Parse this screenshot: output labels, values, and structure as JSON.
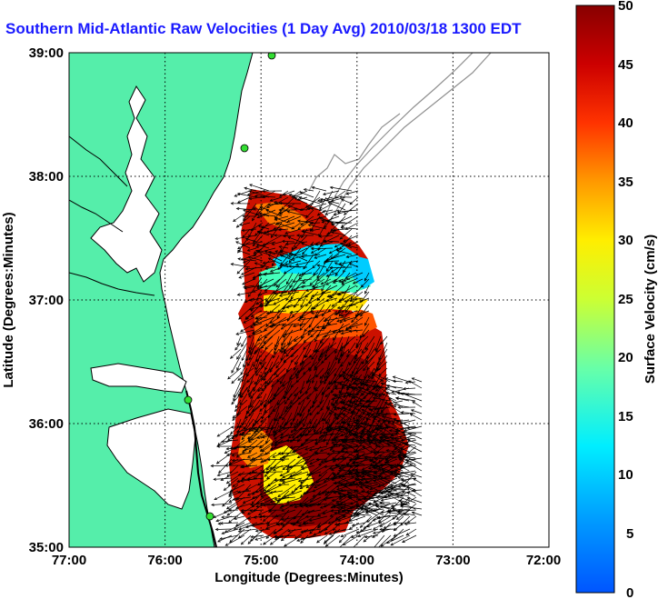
{
  "title": "Southern Mid-Atlantic Raw Velocities (1 Day Avg) 2010/03/18 1300 EDT",
  "map": {
    "x_label": "Longitude (Degrees:Minutes)",
    "y_label": "Latitude (Degrees:Minutes)",
    "x_ticks": [
      "77:00",
      "76:00",
      "75:00",
      "74:00",
      "73:00",
      "72:00"
    ],
    "y_ticks": [
      "39:00",
      "38:00",
      "37:00",
      "36:00",
      "35:00"
    ],
    "lon_range": [
      -77,
      -72
    ],
    "lat_range": [
      35,
      39
    ],
    "land_color": "#55eeaa",
    "coast_color": "#000000",
    "bathymetry_color": "#909090",
    "grid": "dotted"
  },
  "colorbar": {
    "label": "Surface Velocity (cm/s)",
    "ticks": [
      "50",
      "45",
      "40",
      "35",
      "30",
      "25",
      "20",
      "15",
      "10",
      "5",
      "0"
    ],
    "range": [
      0,
      50
    ],
    "colormap": "jet"
  }
}
